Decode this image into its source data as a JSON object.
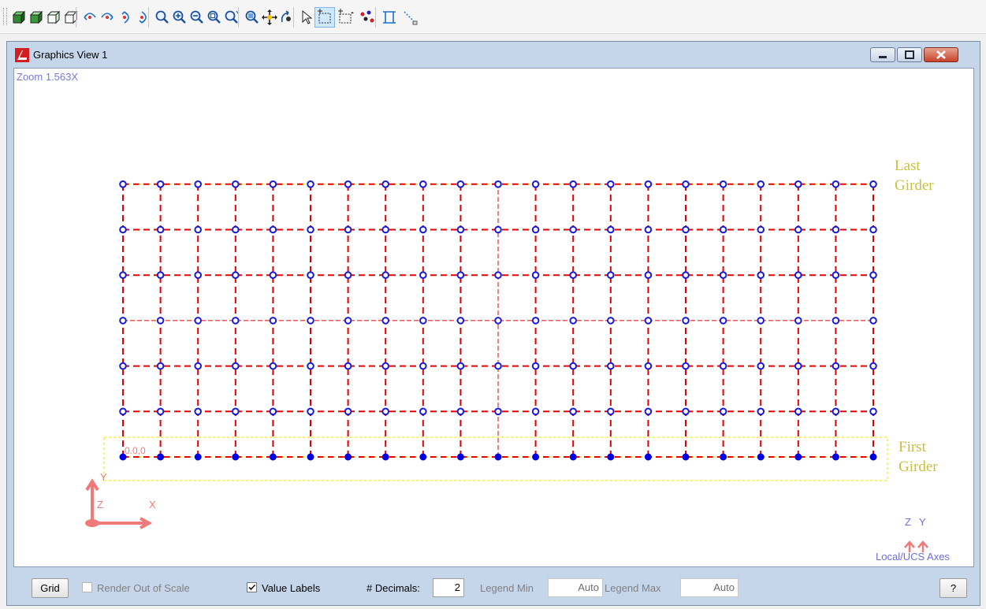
{
  "toolbar": {
    "buttons": [
      "solid-view-icon",
      "shaded-view-icon",
      "wireframe-view-icon",
      "hidden-line-view-icon",
      "rotate-left-icon",
      "rotate-right-icon",
      "rotate-up-icon",
      "rotate-down-icon",
      "zoom-icon",
      "zoom-in-icon",
      "zoom-out-icon",
      "zoom-extents-icon",
      "zoom-previous-icon",
      "zoom-window-icon",
      "pan-icon",
      "orbit-icon",
      "select-pointer-icon",
      "select-box-icon",
      "select-crossing-icon",
      "select-nodes-icon",
      "dimension-icon",
      "measure-icon"
    ],
    "active": "select-box-icon"
  },
  "window": {
    "title": "Graphics View 1",
    "controls": {
      "minimize": "minimize-icon",
      "maximize": "maximize-icon",
      "close": "close-icon"
    }
  },
  "viewport": {
    "zoom_label": "Zoom  1.563X",
    "origin_label": "0.0,0",
    "girder_labels": {
      "last_line1": "Last",
      "last_line2": "Girder",
      "first_line1": "First",
      "first_line2": "Girder"
    },
    "global_axes": {
      "x": "X",
      "y": "Y",
      "z": "Z"
    },
    "local_axes": {
      "z": "Z",
      "y": "Y",
      "label": "Local/UCS Axes"
    },
    "grid": {
      "columns": 21,
      "rows": 7
    },
    "colors": {
      "member": "#e30000",
      "node_open": "#1a1ad6",
      "node_filled": "#0000e0",
      "girder_highlight": "#e8e400",
      "axes": "#f07a7a"
    }
  },
  "statusbar": {
    "grid_button": "Grid",
    "render_out_of_scale": "Render Out of Scale",
    "render_out_of_scale_checked": false,
    "value_labels": "Value Labels",
    "value_labels_checked": true,
    "decimals_label": "# Decimals:",
    "decimals_value": "2",
    "legend_min_label": "Legend Min",
    "legend_min_value": "Auto",
    "legend_max_label": "Legend Max",
    "legend_max_value": "Auto",
    "help_button": "?"
  }
}
